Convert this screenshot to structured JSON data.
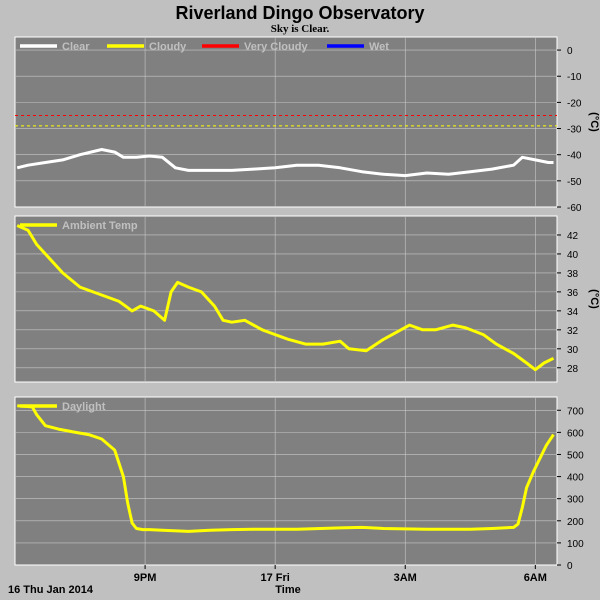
{
  "title": "Riverland Dingo Observatory",
  "subtitle": "Sky is Clear.",
  "footer": {
    "date_label": "16 Thu Jan 2014",
    "xlabel": "Time"
  },
  "x_ticks": [
    {
      "x": 3.5,
      "label": "9PM"
    },
    {
      "x": 6.5,
      "label": "17 Fri"
    },
    {
      "x": 9.5,
      "label": "3AM"
    },
    {
      "x": 12.5,
      "label": "6AM"
    }
  ],
  "colors": {
    "panel_bg": "#808080",
    "page_bg": "#c0c0c0",
    "grid": "#c8c8c8",
    "text": "#000000",
    "legend_text": "#c0c0c0"
  },
  "chart_data": [
    {
      "type": "line",
      "ylabel": "(°C)",
      "ylim": [
        -60,
        5
      ],
      "yticks": [
        0,
        -10,
        -20,
        -30,
        -40,
        -50,
        -60
      ],
      "xlim": [
        0.5,
        13
      ],
      "legend": [
        {
          "name": "Clear",
          "color": "#ffffff"
        },
        {
          "name": "Cloudy",
          "color": "#ffff00"
        },
        {
          "name": "Very Cloudy",
          "color": "#ff0000"
        },
        {
          "name": "Wet",
          "color": "#0000ff"
        }
      ],
      "thresholds": [
        {
          "name": "Very Cloudy",
          "y": -25,
          "color": "#ff0000"
        },
        {
          "name": "Cloudy",
          "y": -29,
          "color": "#ffff00"
        }
      ],
      "series": [
        {
          "name": "Clear",
          "color": "#ffffff",
          "x": [
            0.55,
            0.8,
            1.2,
            1.6,
            2.0,
            2.5,
            2.8,
            3.0,
            3.3,
            3.6,
            3.9,
            4.2,
            4.5,
            5.0,
            5.5,
            6.0,
            6.5,
            7.0,
            7.5,
            8.0,
            8.5,
            9.0,
            9.5,
            10.0,
            10.5,
            11.0,
            11.5,
            12.0,
            12.2,
            12.5,
            12.8,
            12.92
          ],
          "y": [
            -45,
            -44,
            -43,
            -42,
            -40,
            -38,
            -39,
            -41,
            -41,
            -40.5,
            -41,
            -45,
            -46,
            -46,
            -46,
            -45.5,
            -45,
            -44,
            -44,
            -45,
            -46.5,
            -47.5,
            -48,
            -47,
            -47.5,
            -46.5,
            -45.5,
            -44,
            -41,
            -42,
            -43,
            -43
          ]
        }
      ]
    },
    {
      "type": "line",
      "ylabel": "(°C)",
      "ylim": [
        26.5,
        44
      ],
      "yticks": [
        42,
        40,
        38,
        36,
        34,
        32,
        30,
        28
      ],
      "xlim": [
        0.5,
        13
      ],
      "legend": [
        {
          "name": "Ambient Temp",
          "color": "#ffff00"
        }
      ],
      "series": [
        {
          "name": "Ambient Temp",
          "color": "#ffff00",
          "x": [
            0.55,
            0.8,
            1.0,
            1.3,
            1.6,
            2.0,
            2.3,
            2.6,
            2.9,
            3.2,
            3.4,
            3.7,
            3.95,
            4.1,
            4.25,
            4.5,
            4.8,
            5.1,
            5.3,
            5.5,
            5.8,
            6.2,
            6.5,
            6.8,
            7.2,
            7.6,
            8.0,
            8.2,
            8.6,
            9.0,
            9.4,
            9.6,
            9.9,
            10.2,
            10.6,
            10.9,
            11.3,
            11.6,
            12.0,
            12.3,
            12.5,
            12.7,
            12.92
          ],
          "y": [
            43,
            42.5,
            41,
            39.5,
            38,
            36.5,
            36,
            35.5,
            35,
            34,
            34.5,
            34,
            33,
            36,
            37,
            36.5,
            36,
            34.5,
            33,
            32.8,
            33,
            32,
            31.5,
            31,
            30.5,
            30.5,
            30.8,
            30,
            29.8,
            31,
            32,
            32.5,
            32,
            32,
            32.5,
            32.2,
            31.5,
            30.5,
            29.5,
            28.5,
            27.8,
            28.5,
            29
          ]
        }
      ]
    },
    {
      "type": "line",
      "ylim": [
        0,
        760
      ],
      "yticks": [
        700,
        600,
        500,
        400,
        300,
        200,
        100,
        0
      ],
      "xlim": [
        0.5,
        13
      ],
      "legend": [
        {
          "name": "Daylight",
          "color": "#ffff00"
        }
      ],
      "series": [
        {
          "name": "Daylight",
          "color": "#ffff00",
          "x": [
            0.55,
            0.9,
            1.0,
            1.2,
            1.5,
            1.9,
            2.2,
            2.5,
            2.8,
            3.0,
            3.1,
            3.2,
            3.3,
            3.45,
            3.6,
            3.9,
            4.5,
            5.0,
            5.5,
            6.0,
            7.0,
            8.0,
            8.5,
            9.0,
            10.0,
            11.0,
            11.5,
            12.0,
            12.1,
            12.2,
            12.3,
            12.45,
            12.6,
            12.75,
            12.92
          ],
          "y": [
            720,
            715,
            680,
            630,
            615,
            600,
            590,
            570,
            520,
            400,
            280,
            190,
            165,
            160,
            160,
            157,
            152,
            157,
            160,
            162,
            162,
            168,
            170,
            165,
            162,
            162,
            165,
            170,
            185,
            260,
            350,
            420,
            480,
            540,
            590
          ]
        }
      ]
    }
  ]
}
